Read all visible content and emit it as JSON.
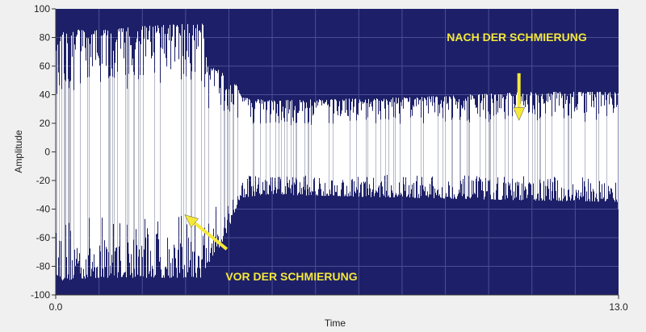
{
  "chart_data": {
    "type": "area",
    "title": "",
    "xlabel": "Time",
    "ylabel": "Amplitude",
    "xlim": [
      0.0,
      13.0
    ],
    "ylim": [
      -100,
      100
    ],
    "x_tick_labels": [
      "0.0",
      "13.0"
    ],
    "y_ticks": [
      100,
      80,
      60,
      40,
      20,
      0,
      -20,
      -40,
      -60,
      -80,
      -100
    ],
    "grid": true,
    "grid_x_step": 1,
    "grid_y_step": 20,
    "colors": {
      "plot_background": "#1d2068",
      "signal": "#ffffff",
      "annotation": "#f5e83a",
      "grid": "#4a4f95"
    },
    "envelope": {
      "columns": [
        "time",
        "upper_peak",
        "lower_peak"
      ],
      "points": [
        [
          0.0,
          70,
          -85
        ],
        [
          0.15,
          86,
          -90
        ],
        [
          1.0,
          85,
          -88
        ],
        [
          2.0,
          88,
          -88
        ],
        [
          3.4,
          90,
          -88
        ],
        [
          3.5,
          60,
          -80
        ],
        [
          3.9,
          56,
          -62
        ],
        [
          4.1,
          52,
          -45
        ],
        [
          4.3,
          38,
          -32
        ],
        [
          5.0,
          36,
          -30
        ],
        [
          8.0,
          38,
          -32
        ],
        [
          11.0,
          42,
          -34
        ],
        [
          13.0,
          42,
          -35
        ]
      ]
    },
    "annotations": [
      {
        "text": "NACH DER SCHMIERUNG",
        "arrow_from": [
          10.7,
          55
        ],
        "arrow_to": [
          10.7,
          22
        ]
      },
      {
        "text": "VOR DER SCHMIERUNG",
        "arrow_from": [
          3.95,
          -68
        ],
        "arrow_to": [
          2.98,
          -44
        ]
      }
    ]
  }
}
